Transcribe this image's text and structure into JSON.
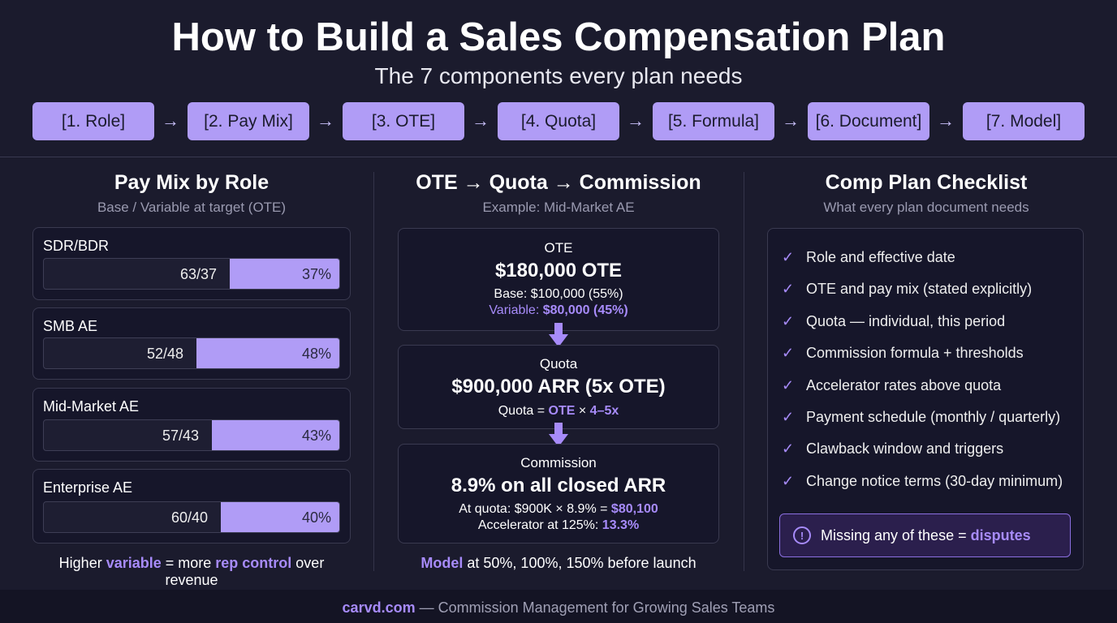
{
  "header": {
    "title": "How to Build a Sales Compensation Plan",
    "subtitle": "The 7 components every plan needs"
  },
  "steps": [
    "[1. Role]",
    "[2. Pay Mix]",
    "[3. OTE]",
    "[4. Quota]",
    "[5. Formula]",
    "[6. Document]",
    "[7. Model]"
  ],
  "arrow": "→",
  "paymix": {
    "title": "Pay Mix by Role",
    "subtitle": "Base / Variable at target (OTE)",
    "roles": [
      {
        "name": "SDR/BDR",
        "mix": "63/37",
        "variable": "37%",
        "variable_pct": 37
      },
      {
        "name": "SMB AE",
        "mix": "52/48",
        "variable": "48%",
        "variable_pct": 48
      },
      {
        "name": "Mid-Market AE",
        "mix": "57/43",
        "variable": "43%",
        "variable_pct": 43
      },
      {
        "name": "Enterprise AE",
        "mix": "60/40",
        "variable": "40%",
        "variable_pct": 40
      }
    ],
    "note": {
      "a": "Higher ",
      "b": "variable",
      "c": " = more ",
      "d": "rep control",
      "e": " over revenue"
    }
  },
  "flow": {
    "title": "OTE → Quota → Commission",
    "subtitle": "Example: Mid-Market AE",
    "ote": {
      "label": "OTE",
      "value": "$180,000 OTE",
      "base": "Base: $100,000 (55%)",
      "var_a": "Variable: ",
      "var_b": "$80,000 (45%)"
    },
    "quota": {
      "label": "Quota",
      "value": "$900,000 ARR (5x OTE)",
      "f_a": "Quota = ",
      "f_b": "OTE",
      "f_c": " × ",
      "f_d": "4–5x"
    },
    "commission": {
      "label": "Commission",
      "value": "8.9% on all closed ARR",
      "q_a": "At quota: $900K × 8.9% = ",
      "q_b": "$80,100",
      "acc_a": "Accelerator at 125%: ",
      "acc_b": "13.3%"
    },
    "note": {
      "a": "Model",
      "b": " at 50%, 100%, 150% before launch"
    }
  },
  "checklist": {
    "title": "Comp Plan Checklist",
    "subtitle": "What every plan document needs",
    "check": "✓",
    "items": [
      "Role and effective date",
      "OTE and pay mix (stated explicitly)",
      "Quota — individual, this period",
      "Commission formula + thresholds",
      "Accelerator rates above quota",
      "Payment schedule (monthly / quarterly)",
      "Clawback window and triggers",
      "Change notice terms (30-day minimum)"
    ],
    "alert": {
      "icon": "!",
      "a": "Missing any of these = ",
      "b": "disputes"
    }
  },
  "footer": {
    "brand": "carvd.com",
    "text": " — Commission Management for Growing Sales Teams"
  },
  "colors": {
    "accent": "#a78bfa",
    "step_bg": "#b09cf6",
    "background": "#1b1b2d"
  }
}
